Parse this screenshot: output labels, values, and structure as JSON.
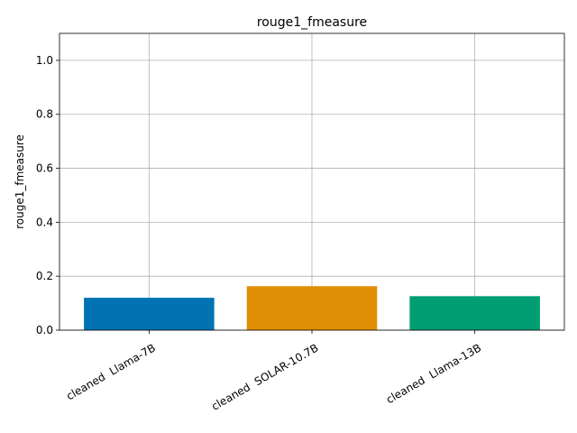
{
  "chart_data": {
    "type": "bar",
    "title": "rouge1_fmeasure",
    "xlabel": "",
    "ylabel": "rouge1_fmeasure",
    "categories": [
      "cleaned  Llama-7B",
      "cleaned  SOLAR-10.7B",
      "cleaned  Llama-13B"
    ],
    "values": [
      0.12,
      0.163,
      0.126
    ],
    "colors": [
      "#0173b2",
      "#de8f05",
      "#029e73"
    ],
    "ylim": [
      0,
      1.1
    ],
    "yticks": [
      0.0,
      0.2,
      0.4,
      0.6,
      0.8,
      1.0
    ],
    "ytick_labels": [
      "0.0",
      "0.2",
      "0.4",
      "0.6",
      "0.8",
      "1.0"
    ],
    "grid": true,
    "xtick_rotation_deg": 30
  }
}
